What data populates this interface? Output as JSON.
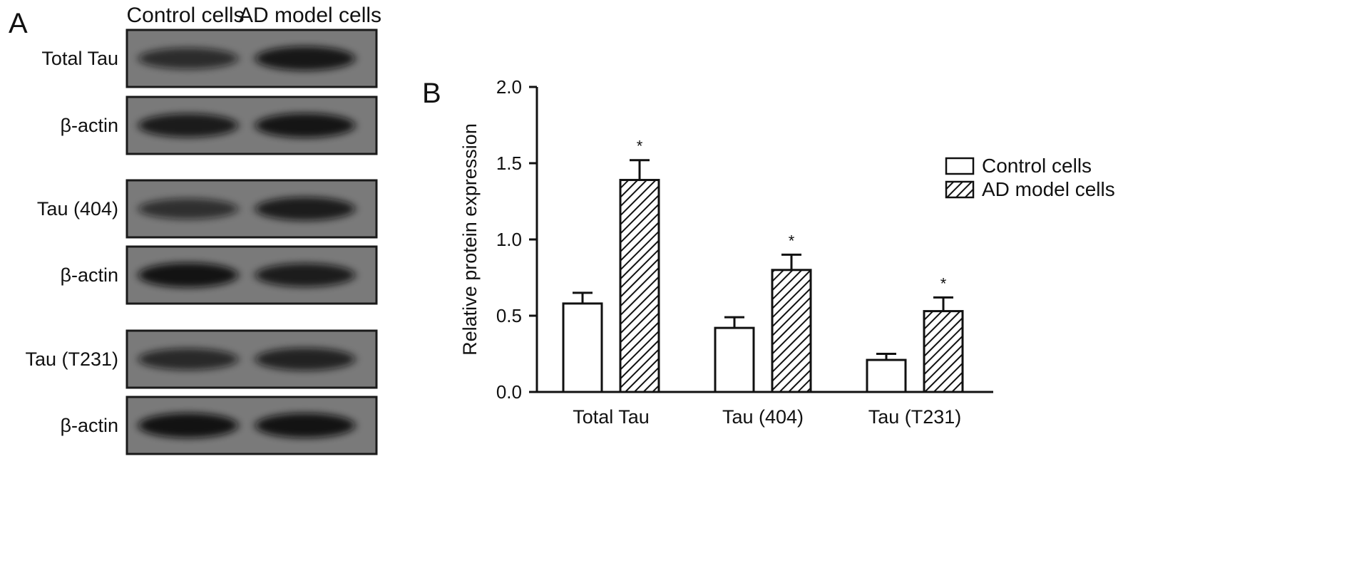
{
  "panels": {
    "a": "A",
    "b": "B"
  },
  "blot": {
    "column_labels": [
      "Control cells",
      "AD model cells"
    ],
    "rows": [
      {
        "label": "Total Tau",
        "band_intensity": [
          0.55,
          0.85
        ]
      },
      {
        "label": "β-actin",
        "band_intensity": [
          0.8,
          0.88
        ]
      },
      {
        "label": "Tau (404)",
        "band_intensity": [
          0.5,
          0.78
        ]
      },
      {
        "label": "β-actin",
        "band_intensity": [
          0.9,
          0.78
        ]
      },
      {
        "label": "Tau (T231)",
        "band_intensity": [
          0.6,
          0.7
        ]
      },
      {
        "label": "β-actin",
        "band_intensity": [
          0.92,
          0.9
        ]
      }
    ],
    "colors": {
      "membrane": "#7a7a7a",
      "band": "#111111"
    }
  },
  "chart_data": {
    "type": "bar",
    "title": "",
    "xlabel": "",
    "ylabel": "Relative protein expression",
    "categories": [
      "Total Tau",
      "Tau (404)",
      "Tau (T231)"
    ],
    "ylim": [
      0,
      2.0
    ],
    "yticks": [
      0.0,
      0.5,
      1.0,
      1.5,
      2.0
    ],
    "ytick_labels": [
      "0.0",
      "0.5",
      "1.0",
      "1.5",
      "2.0"
    ],
    "series": [
      {
        "name": "Control cells",
        "values": [
          0.58,
          0.42,
          0.21
        ],
        "errors": [
          0.07,
          0.07,
          0.04
        ],
        "fill": "white",
        "significant": [
          false,
          false,
          false
        ]
      },
      {
        "name": "AD model cells",
        "values": [
          1.39,
          0.8,
          0.53
        ],
        "errors": [
          0.13,
          0.1,
          0.09
        ],
        "fill": "hatched",
        "significant": [
          true,
          true,
          true
        ]
      }
    ],
    "significance_marker": "*",
    "legend_position": "top-right",
    "grid": false
  }
}
